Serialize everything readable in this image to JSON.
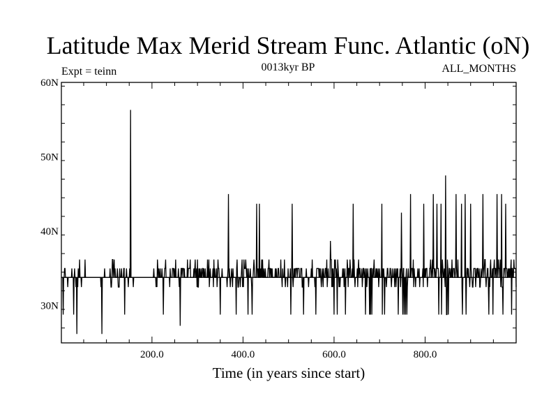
{
  "chart_data": {
    "type": "line",
    "title": "Latitude Max Merid Stream Func. Atlantic (oN)",
    "subtitle_left": "Expt = teinn",
    "subtitle_center": "0013kyr BP",
    "subtitle_right": "ALL_MONTHS",
    "xlabel": "Time (in years since start)",
    "ylabel": "",
    "xlim": [
      1,
      1000
    ],
    "ylim": [
      25,
      60
    ],
    "x_ticks": [
      {
        "value": 200,
        "label": "200.0"
      },
      {
        "value": 400,
        "label": "400.0"
      },
      {
        "value": 600,
        "label": "600.0"
      },
      {
        "value": 800,
        "label": "800.0"
      }
    ],
    "y_ticks": [
      {
        "value": 30,
        "label": "30N"
      },
      {
        "value": 40,
        "label": "40N"
      },
      {
        "value": 50,
        "label": "50N"
      },
      {
        "value": 60,
        "label": "60N"
      }
    ],
    "baseline": 33.8,
    "levels": [
      26.2,
      27.3,
      28.8,
      32.5,
      33.8,
      35.0,
      36.2
    ],
    "spikes": [
      {
        "x": 153,
        "value": 56.3
      },
      {
        "x": 368,
        "value": 45.0
      },
      {
        "x": 430,
        "value": 43.7
      },
      {
        "x": 436,
        "value": 43.7
      },
      {
        "x": 508,
        "value": 43.7
      },
      {
        "x": 592,
        "value": 38.7
      },
      {
        "x": 642,
        "value": 43.7
      },
      {
        "x": 705,
        "value": 43.7
      },
      {
        "x": 748,
        "value": 42.5
      },
      {
        "x": 768,
        "value": 45.0
      },
      {
        "x": 797,
        "value": 43.7
      },
      {
        "x": 818,
        "value": 45.0
      },
      {
        "x": 826,
        "value": 43.7
      },
      {
        "x": 835,
        "value": 43.7
      },
      {
        "x": 845,
        "value": 47.5
      },
      {
        "x": 868,
        "value": 45.0
      },
      {
        "x": 880,
        "value": 43.7
      },
      {
        "x": 888,
        "value": 45.0
      },
      {
        "x": 900,
        "value": 43.7
      },
      {
        "x": 927,
        "value": 45.0
      },
      {
        "x": 958,
        "value": 45.0
      },
      {
        "x": 968,
        "value": 45.0
      },
      {
        "x": 977,
        "value": 43.7
      }
    ],
    "dips": [
      {
        "x": 5,
        "value": 28.8
      },
      {
        "x": 28,
        "value": 28.8
      },
      {
        "x": 35,
        "value": 26.2
      },
      {
        "x": 90,
        "value": 26.2
      },
      {
        "x": 140,
        "value": 28.8
      },
      {
        "x": 225,
        "value": 28.8
      },
      {
        "x": 262,
        "value": 27.3
      },
      {
        "x": 350,
        "value": 28.8
      },
      {
        "x": 385,
        "value": 28.8
      },
      {
        "x": 420,
        "value": 28.8
      },
      {
        "x": 505,
        "value": 28.8
      },
      {
        "x": 560,
        "value": 28.8
      },
      {
        "x": 625,
        "value": 28.8
      },
      {
        "x": 680,
        "value": 28.8
      },
      {
        "x": 760,
        "value": 28.8
      },
      {
        "x": 830,
        "value": 28.8
      },
      {
        "x": 890,
        "value": 28.8
      },
      {
        "x": 940,
        "value": 28.8
      },
      {
        "x": 990,
        "value": 28.8
      }
    ]
  }
}
